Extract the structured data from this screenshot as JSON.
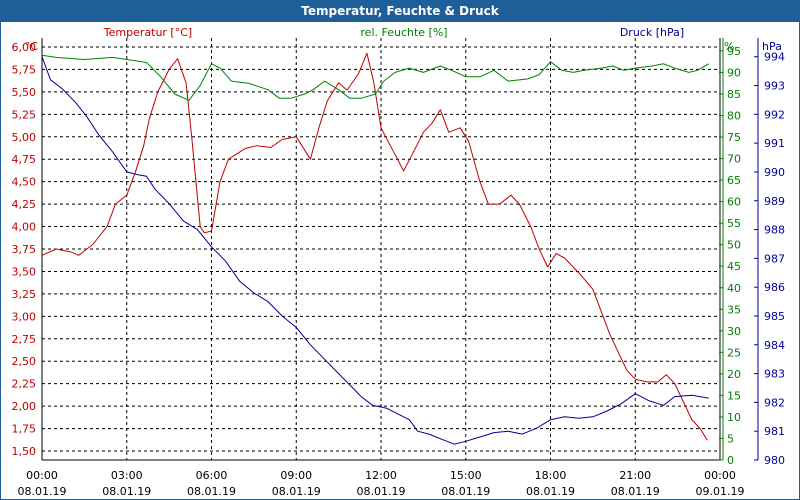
{
  "chart_data": {
    "type": "line",
    "title": "Temperatur, Feuchte & Druck",
    "grid": true,
    "colors": {
      "temperature": "#c00000",
      "humidity": "#008000",
      "pressure": "#000099",
      "title_bar": "#1f5f99"
    },
    "x_ticks": [
      {
        "time": "00:00",
        "date": "08.01.19"
      },
      {
        "time": "03:00",
        "date": "08.01.19"
      },
      {
        "time": "06:00",
        "date": "08.01.19"
      },
      {
        "time": "09:00",
        "date": "08.01.19"
      },
      {
        "time": "12:00",
        "date": "08.01.19"
      },
      {
        "time": "15:00",
        "date": "08.01.19"
      },
      {
        "time": "18:00",
        "date": "08.01.19"
      },
      {
        "time": "21:00",
        "date": "08.01.19"
      },
      {
        "time": "00:00",
        "date": "09.01.19"
      }
    ],
    "x_range_hours": [
      0,
      24
    ],
    "axes": {
      "temperature": {
        "label": "Temperatur [°C]",
        "unit": "°C",
        "range": [
          1.4,
          6.1
        ],
        "ticks": [
          "1,50",
          "1,75",
          "2,00",
          "2,25",
          "2,50",
          "2,75",
          "3,00",
          "3,25",
          "3,50",
          "3,75",
          "4,00",
          "4,25",
          "4,50",
          "4,75",
          "5,00",
          "5,25",
          "5,50",
          "5,75",
          "6,00"
        ]
      },
      "humidity": {
        "label": "rel. Feuchte [%]",
        "unit": "%",
        "range": [
          0,
          98
        ],
        "ticks": [
          "0",
          "5",
          "10",
          "15",
          "20",
          "25",
          "30",
          "35",
          "40",
          "45",
          "50",
          "55",
          "60",
          "65",
          "70",
          "75",
          "80",
          "85",
          "90",
          "95"
        ]
      },
      "pressure": {
        "label": "Druck [hPa]",
        "unit": "hPa",
        "range": [
          980,
          994.65
        ],
        "ticks": [
          "980",
          "981",
          "982",
          "983",
          "984",
          "985",
          "986",
          "987",
          "988",
          "989",
          "990",
          "991",
          "992",
          "993",
          "994"
        ]
      }
    },
    "series": [
      {
        "name": "Temperatur [°C]",
        "axis": "temperature",
        "points": [
          [
            0,
            3.68
          ],
          [
            0.5,
            3.75
          ],
          [
            1,
            3.72
          ],
          [
            1.3,
            3.68
          ],
          [
            1.8,
            3.8
          ],
          [
            2.3,
            4.0
          ],
          [
            2.6,
            4.25
          ],
          [
            3,
            4.35
          ],
          [
            3.3,
            4.6
          ],
          [
            3.6,
            4.9
          ],
          [
            3.8,
            5.2
          ],
          [
            4.1,
            5.5
          ],
          [
            4.5,
            5.75
          ],
          [
            4.8,
            5.87
          ],
          [
            5.1,
            5.6
          ],
          [
            5.3,
            5.0
          ],
          [
            5.6,
            4.0
          ],
          [
            5.75,
            3.93
          ],
          [
            6.0,
            3.95
          ],
          [
            6.3,
            4.5
          ],
          [
            6.6,
            4.75
          ],
          [
            7.2,
            4.87
          ],
          [
            7.6,
            4.9
          ],
          [
            8.1,
            4.88
          ],
          [
            8.5,
            4.97
          ],
          [
            9.0,
            5.0
          ],
          [
            9.5,
            4.75
          ],
          [
            9.8,
            5.1
          ],
          [
            10.1,
            5.4
          ],
          [
            10.5,
            5.6
          ],
          [
            10.8,
            5.52
          ],
          [
            11.2,
            5.7
          ],
          [
            11.5,
            5.93
          ],
          [
            11.75,
            5.6
          ],
          [
            12.0,
            5.1
          ],
          [
            12.5,
            4.8
          ],
          [
            12.8,
            4.62
          ],
          [
            13.1,
            4.8
          ],
          [
            13.5,
            5.05
          ],
          [
            13.8,
            5.15
          ],
          [
            14.1,
            5.3
          ],
          [
            14.4,
            5.05
          ],
          [
            14.8,
            5.1
          ],
          [
            15.1,
            4.95
          ],
          [
            15.5,
            4.5
          ],
          [
            15.8,
            4.25
          ],
          [
            16.2,
            4.25
          ],
          [
            16.6,
            4.35
          ],
          [
            16.9,
            4.25
          ],
          [
            17.3,
            4.0
          ],
          [
            17.6,
            3.75
          ],
          [
            17.9,
            3.55
          ],
          [
            18.2,
            3.7
          ],
          [
            18.5,
            3.65
          ],
          [
            18.8,
            3.55
          ],
          [
            19.1,
            3.45
          ],
          [
            19.5,
            3.3
          ],
          [
            19.8,
            3.05
          ],
          [
            20.1,
            2.8
          ],
          [
            20.4,
            2.6
          ],
          [
            20.7,
            2.4
          ],
          [
            21.0,
            2.3
          ],
          [
            21.4,
            2.27
          ],
          [
            21.8,
            2.27
          ],
          [
            22.1,
            2.35
          ],
          [
            22.4,
            2.25
          ],
          [
            22.7,
            2.05
          ],
          [
            23.0,
            1.85
          ],
          [
            23.3,
            1.75
          ],
          [
            23.55,
            1.62
          ]
        ]
      },
      {
        "name": "rel. Feuchte [%]",
        "axis": "humidity",
        "points": [
          [
            0,
            94
          ],
          [
            0.5,
            93.5
          ],
          [
            1.5,
            93
          ],
          [
            2.5,
            93.5
          ],
          [
            3,
            93
          ],
          [
            3.7,
            92.3
          ],
          [
            4.2,
            89
          ],
          [
            4.7,
            85
          ],
          [
            5.2,
            83.5
          ],
          [
            5.6,
            87
          ],
          [
            6.0,
            92
          ],
          [
            6.3,
            91
          ],
          [
            6.7,
            88
          ],
          [
            7.3,
            87.5
          ],
          [
            8.0,
            86
          ],
          [
            8.4,
            84
          ],
          [
            8.8,
            84
          ],
          [
            9.3,
            85
          ],
          [
            9.6,
            86
          ],
          [
            10,
            88
          ],
          [
            10.5,
            86
          ],
          [
            10.9,
            84
          ],
          [
            11.3,
            84
          ],
          [
            11.8,
            85
          ],
          [
            12.1,
            88
          ],
          [
            12.5,
            90
          ],
          [
            13,
            91
          ],
          [
            13.5,
            90
          ],
          [
            14.1,
            91.5
          ],
          [
            14.5,
            90.5
          ],
          [
            15.0,
            89
          ],
          [
            15.5,
            89
          ],
          [
            16.0,
            90.5
          ],
          [
            16.5,
            88
          ],
          [
            17.2,
            88.5
          ],
          [
            17.6,
            89.5
          ],
          [
            18.0,
            92.5
          ],
          [
            18.4,
            90.5
          ],
          [
            18.8,
            90
          ],
          [
            19.2,
            90.5
          ],
          [
            19.8,
            91
          ],
          [
            20.2,
            91.5
          ],
          [
            20.6,
            90.5
          ],
          [
            21.0,
            91
          ],
          [
            21.6,
            91.5
          ],
          [
            22.0,
            92
          ],
          [
            22.4,
            91
          ],
          [
            22.9,
            90
          ],
          [
            23.2,
            90.5
          ],
          [
            23.6,
            92
          ]
        ]
      },
      {
        "name": "Druck [hPa]",
        "axis": "pressure",
        "points": [
          [
            0,
            994.0
          ],
          [
            0.3,
            993.2
          ],
          [
            0.7,
            992.9
          ],
          [
            1.2,
            992.4
          ],
          [
            1.6,
            991.9
          ],
          [
            2.0,
            991.3
          ],
          [
            2.5,
            990.7
          ],
          [
            3.0,
            990.0
          ],
          [
            3.4,
            989.9
          ],
          [
            3.7,
            989.85
          ],
          [
            4.0,
            989.4
          ],
          [
            4.5,
            988.9
          ],
          [
            5.0,
            988.3
          ],
          [
            5.5,
            988.0
          ],
          [
            6.0,
            987.4
          ],
          [
            6.5,
            986.9
          ],
          [
            7.0,
            986.2
          ],
          [
            7.5,
            985.8
          ],
          [
            8.0,
            985.5
          ],
          [
            8.5,
            985.0
          ],
          [
            9.0,
            984.6
          ],
          [
            9.5,
            984.0
          ],
          [
            10.0,
            983.5
          ],
          [
            10.5,
            983.0
          ],
          [
            11.0,
            982.5
          ],
          [
            11.3,
            982.2
          ],
          [
            11.7,
            981.9
          ],
          [
            12.2,
            981.8
          ],
          [
            12.6,
            981.6
          ],
          [
            13.0,
            981.4
          ],
          [
            13.3,
            981.0
          ],
          [
            13.7,
            980.9
          ],
          [
            14.2,
            980.7
          ],
          [
            14.6,
            980.55
          ],
          [
            15.0,
            980.65
          ],
          [
            15.5,
            980.8
          ],
          [
            16.0,
            980.95
          ],
          [
            16.5,
            981.0
          ],
          [
            17.0,
            980.9
          ],
          [
            17.5,
            981.1
          ],
          [
            18.0,
            981.4
          ],
          [
            18.5,
            981.5
          ],
          [
            19.0,
            981.45
          ],
          [
            19.5,
            981.5
          ],
          [
            20.0,
            981.7
          ],
          [
            20.5,
            981.95
          ],
          [
            21.0,
            982.3
          ],
          [
            21.5,
            982.05
          ],
          [
            22.0,
            981.9
          ],
          [
            22.4,
            982.2
          ],
          [
            23.0,
            982.25
          ],
          [
            23.6,
            982.15
          ]
        ]
      }
    ]
  }
}
